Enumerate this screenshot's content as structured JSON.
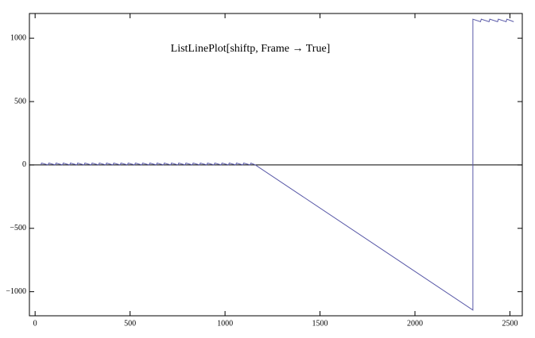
{
  "chart_data": {
    "type": "line",
    "title": "ListLinePlot[shiftp, Frame → True]",
    "x": [
      30,
      34,
      68,
      72,
      106,
      110,
      144,
      148,
      182,
      186,
      220,
      224,
      258,
      262,
      296,
      300,
      334,
      338,
      372,
      376,
      410,
      414,
      448,
      452,
      486,
      490,
      524,
      528,
      562,
      566,
      600,
      604,
      638,
      642,
      676,
      680,
      714,
      718,
      752,
      756,
      790,
      794,
      828,
      832,
      866,
      870,
      904,
      908,
      942,
      946,
      980,
      984,
      1018,
      1022,
      1056,
      1060,
      1094,
      1098,
      1132,
      1136,
      1160,
      2305,
      2305,
      2345,
      2349,
      2390,
      2394,
      2435,
      2439,
      2480,
      2484,
      2520
    ],
    "series": [
      {
        "color": "#5a5aa8",
        "values": [
          0,
          15,
          0,
          15,
          0,
          15,
          0,
          15,
          0,
          15,
          0,
          15,
          0,
          15,
          0,
          15,
          0,
          15,
          0,
          15,
          0,
          15,
          0,
          15,
          0,
          15,
          0,
          15,
          0,
          15,
          0,
          15,
          0,
          15,
          0,
          15,
          0,
          15,
          0,
          15,
          0,
          15,
          0,
          15,
          0,
          15,
          0,
          15,
          0,
          15,
          0,
          15,
          0,
          15,
          0,
          15,
          0,
          15,
          0,
          15,
          0,
          -1145,
          1150,
          1130,
          1150,
          1130,
          1150,
          1130,
          1150,
          1130,
          1150,
          1130
        ]
      }
    ],
    "xlim": [
      -30,
      2565
    ],
    "ylim": [
      -1190,
      1195
    ],
    "xticks": [
      0,
      500,
      1000,
      1500,
      2000,
      2500
    ],
    "yticks": [
      {
        "value": -1000,
        "label": "−1000"
      },
      {
        "value": -500,
        "label": "−500"
      },
      0,
      500,
      1000
    ],
    "axis_line": true
  }
}
